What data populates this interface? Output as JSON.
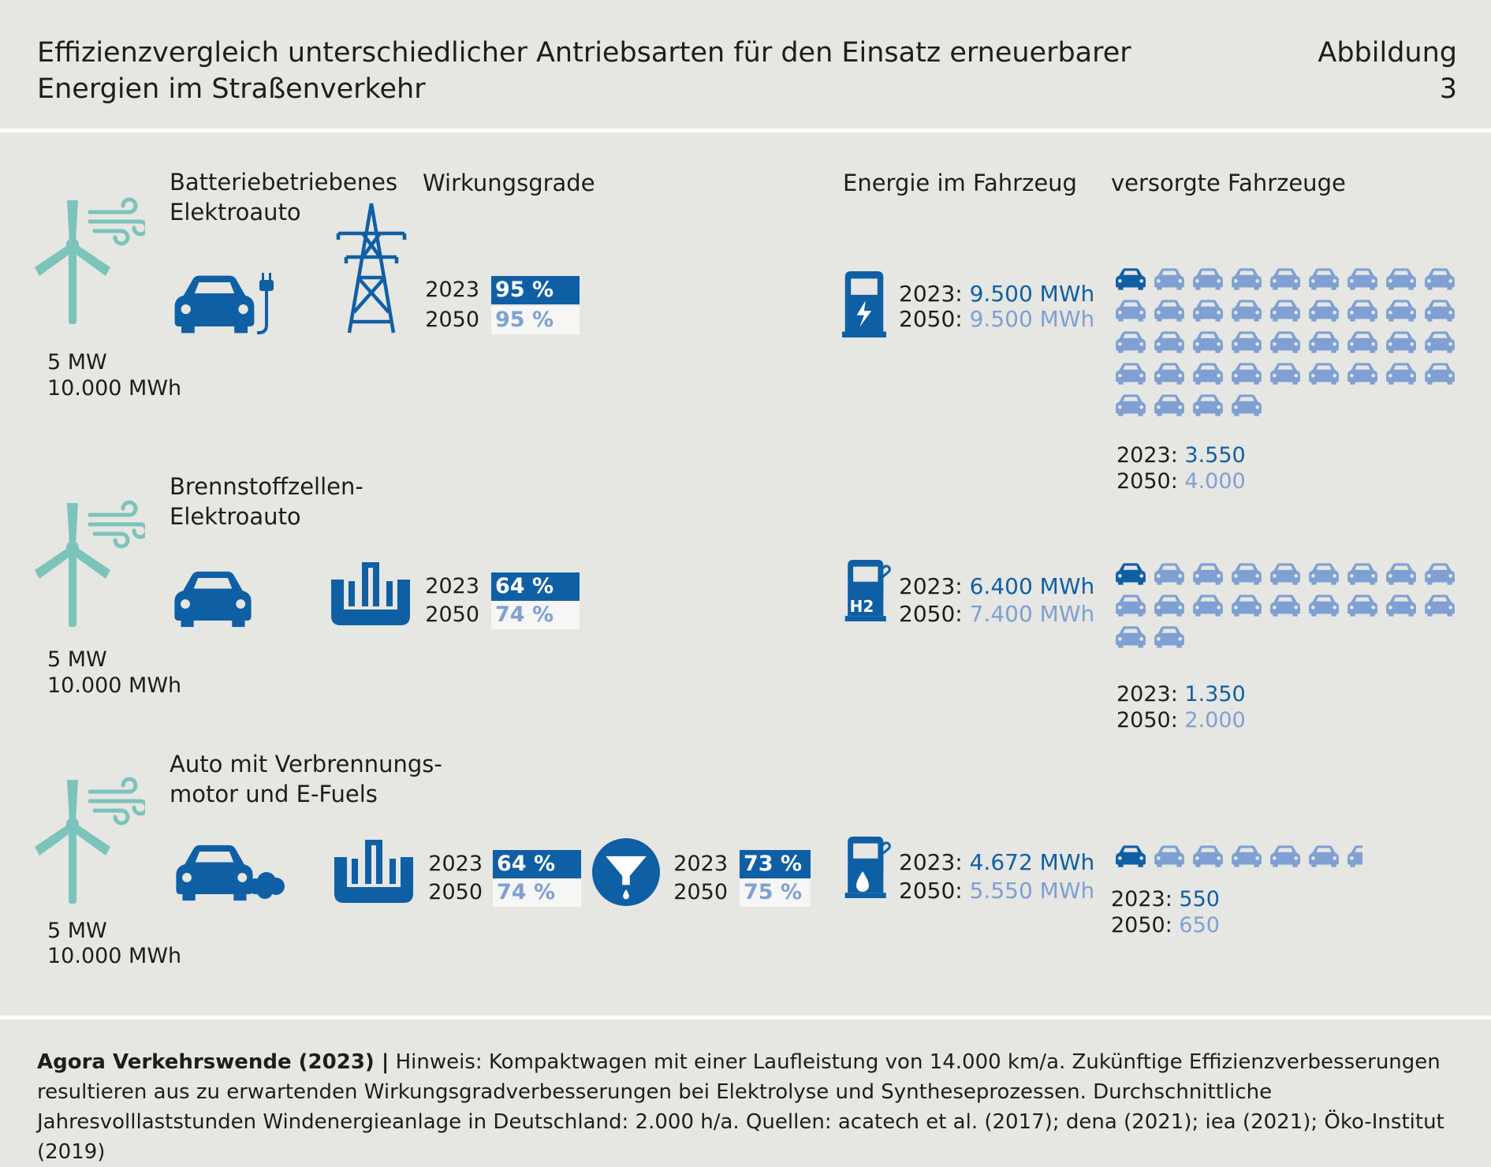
{
  "header": {
    "title": "Effizienzvergleich unterschiedlicher Antriebsarten für den Einsatz erneuerbarer Energien im Straßenverkehr",
    "figure_label": "Abbildung 3"
  },
  "columns": {
    "efficiency": "Wirkungsgrade",
    "vehicle_energy": "Energie im Fahrzeug",
    "vehicles_supplied": "versorgte Fahrzeuge"
  },
  "colors": {
    "background": "#e6e6e3",
    "current": "#0f5fa5",
    "future": "#7fa0d2",
    "turbine": "#7cc3bb",
    "bar_future_bg": "#f6f6f4"
  },
  "rows": [
    {
      "title": "Batteriebetriebenes Elektroauto",
      "turbine": {
        "power": "5 MW",
        "energy": "10.000 MWh"
      },
      "icons": [
        "wind-turbine-icon",
        "electric-car-icon",
        "power-pylon-icon",
        "charging-station-icon"
      ],
      "efficiency": [
        {
          "y2023_label": "2023",
          "y2023": "95 %",
          "y2050_label": "2050",
          "y2050": "95 %"
        }
      ],
      "energy": {
        "y2023_label": "2023:",
        "y2023": "9.500 MWh",
        "y2050_label": "2050:",
        "y2050": "9.500 MWh"
      },
      "vehicles": {
        "y2023_label": "2023:",
        "y2023": "3.550",
        "y2050_label": "2050:",
        "y2050": "4.000"
      },
      "vehicle_counts": {
        "y2023": 3550,
        "y2050": 4000,
        "cars_per_icon": 100,
        "per_row": 9
      }
    },
    {
      "title": "Brennstoffzellen-Elektroauto",
      "turbine": {
        "power": "5 MW",
        "energy": "10.000 MWh"
      },
      "icons": [
        "wind-turbine-icon",
        "car-icon",
        "electrolyser-icon",
        "hydrogen-station-icon"
      ],
      "efficiency": [
        {
          "y2023_label": "2023",
          "y2023": "64 %",
          "y2050_label": "2050",
          "y2050": "74 %"
        }
      ],
      "energy": {
        "y2023_label": "2023:",
        "y2023": "6.400 MWh",
        "y2050_label": "2050:",
        "y2050": "7.400 MWh"
      },
      "vehicles": {
        "y2023_label": "2023:",
        "y2023": "1.350",
        "y2050_label": "2050:",
        "y2050": "2.000"
      },
      "vehicle_counts": {
        "y2023": 1350,
        "y2050": 2000,
        "cars_per_icon": 100,
        "per_row": 9
      }
    },
    {
      "title": "Auto mit Verbrennungs-motor und E-Fuels",
      "turbine": {
        "power": "5 MW",
        "energy": "10.000 MWh"
      },
      "icons": [
        "wind-turbine-icon",
        "combustion-car-icon",
        "electrolyser-icon",
        "synthesis-funnel-icon",
        "fuel-station-icon"
      ],
      "efficiency": [
        {
          "y2023_label": "2023",
          "y2023": "64 %",
          "y2050_label": "2050",
          "y2050": "74 %"
        },
        {
          "y2023_label": "2023",
          "y2023": "73 %",
          "y2050_label": "2050",
          "y2050": "75 %"
        }
      ],
      "energy": {
        "y2023_label": "2023:",
        "y2023": "4.672 MWh",
        "y2050_label": "2050:",
        "y2050": "5.550 MWh"
      },
      "vehicles": {
        "y2023_label": "2023:",
        "y2023": "550",
        "y2050_label": "2050:",
        "y2050": "650"
      },
      "vehicle_counts": {
        "y2023": 550,
        "y2050": 650,
        "cars_per_icon": 100,
        "per_row": 9
      }
    }
  ],
  "source": {
    "bold": "Agora Verkehrswende (2023) |",
    "text": " Hinweis: Kompaktwagen mit einer Laufleistung von 14.000 km/a. Zukünftige Effizienzverbesserungen resultieren aus zu erwartenden Wirkungsgradverbesserungen bei Elektrolyse und Syntheseprozessen. Durchschnittliche Jahresvolllaststunden Windenergieanlage in Deutschland: 2.000 h/a. Quellen: acatech et al. (2017); dena (2021); iea (2021); Öko-Institut (2019)"
  }
}
